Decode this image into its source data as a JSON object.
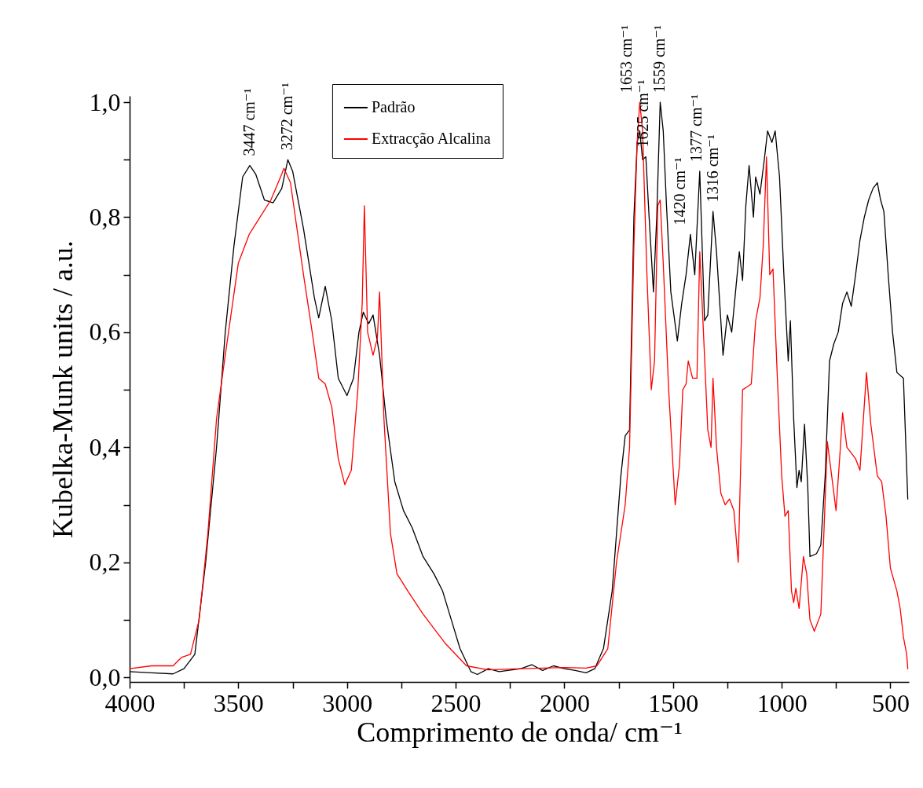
{
  "chart_data": {
    "type": "line",
    "xlabel": "Comprimento de onda/ cm⁻¹",
    "ylabel": "Kubelka-Munk units / a.u.",
    "xlim": [
      4000,
      415
    ],
    "ylim": [
      -0.008,
      1.011
    ],
    "xticks": [
      4000,
      {
        "value": 3750,
        "label": null
      },
      3500,
      {
        "value": 3250,
        "label": null
      },
      3000,
      {
        "value": 2750,
        "label": null
      },
      2500,
      {
        "value": 2250,
        "label": null
      },
      2000,
      {
        "value": 1750,
        "label": null
      },
      1500,
      {
        "value": 1250,
        "label": null
      },
      1000,
      {
        "value": 750,
        "label": null
      },
      500
    ],
    "yticks": [
      {
        "value": 0,
        "label": "0,0"
      },
      {
        "value": 0.1,
        "label": null
      },
      {
        "value": 0.2,
        "label": "0,2"
      },
      {
        "value": 0.3,
        "label": null
      },
      {
        "value": 0.4,
        "label": "0,4"
      },
      {
        "value": 0.5,
        "label": null
      },
      {
        "value": 0.6,
        "label": "0,6"
      },
      {
        "value": 0.7,
        "label": null
      },
      {
        "value": 0.8,
        "label": "0,8"
      },
      {
        "value": 0.9,
        "label": null
      },
      {
        "value": 1.0,
        "label": "1,0"
      }
    ],
    "grid": false,
    "legend": "top",
    "series": [
      {
        "name": "Padrão",
        "color": "#000000",
        "x": [
          4000,
          3900,
          3800,
          3750,
          3700,
          3650,
          3600,
          3560,
          3520,
          3480,
          3447,
          3420,
          3380,
          3340,
          3300,
          3272,
          3250,
          3200,
          3150,
          3130,
          3100,
          3070,
          3040,
          3000,
          2970,
          2945,
          2925,
          2900,
          2880,
          2850,
          2820,
          2780,
          2740,
          2700,
          2650,
          2600,
          2560,
          2520,
          2480,
          2430,
          2400,
          2350,
          2300,
          2200,
          2150,
          2100,
          2050,
          2000,
          1950,
          1900,
          1860,
          1820,
          1780,
          1760,
          1740,
          1720,
          1700,
          1680,
          1665,
          1653,
          1640,
          1625,
          1610,
          1590,
          1575,
          1559,
          1545,
          1530,
          1510,
          1480,
          1460,
          1440,
          1420,
          1400,
          1377,
          1355,
          1340,
          1316,
          1300,
          1270,
          1250,
          1230,
          1210,
          1195,
          1180,
          1165,
          1150,
          1130,
          1120,
          1100,
          1080,
          1065,
          1045,
          1030,
          1010,
          990,
          970,
          960,
          945,
          930,
          920,
          910,
          895,
          880,
          870,
          840,
          820,
          800,
          780,
          760,
          740,
          720,
          700,
          680,
          660,
          640,
          620,
          600,
          580,
          560,
          545,
          530,
          510,
          490,
          470,
          455,
          440,
          420
        ],
        "values": [
          0.01,
          0.008,
          0.006,
          0.015,
          0.04,
          0.2,
          0.4,
          0.6,
          0.75,
          0.87,
          0.89,
          0.875,
          0.83,
          0.825,
          0.85,
          0.9,
          0.88,
          0.78,
          0.66,
          0.625,
          0.68,
          0.62,
          0.52,
          0.49,
          0.52,
          0.6,
          0.635,
          0.615,
          0.63,
          0.56,
          0.45,
          0.34,
          0.29,
          0.26,
          0.21,
          0.18,
          0.15,
          0.1,
          0.05,
          0.01,
          0.005,
          0.015,
          0.01,
          0.015,
          0.022,
          0.012,
          0.02,
          0.015,
          0.012,
          0.008,
          0.015,
          0.05,
          0.15,
          0.25,
          0.35,
          0.42,
          0.43,
          0.8,
          0.93,
          0.95,
          0.9,
          0.905,
          0.8,
          0.67,
          0.8,
          1.0,
          0.95,
          0.82,
          0.67,
          0.585,
          0.65,
          0.7,
          0.77,
          0.7,
          0.88,
          0.62,
          0.63,
          0.81,
          0.74,
          0.56,
          0.63,
          0.6,
          0.68,
          0.74,
          0.69,
          0.82,
          0.89,
          0.8,
          0.87,
          0.84,
          0.9,
          0.95,
          0.93,
          0.95,
          0.87,
          0.7,
          0.55,
          0.62,
          0.45,
          0.33,
          0.36,
          0.34,
          0.44,
          0.33,
          0.21,
          0.215,
          0.23,
          0.35,
          0.55,
          0.58,
          0.6,
          0.65,
          0.67,
          0.645,
          0.7,
          0.76,
          0.8,
          0.83,
          0.85,
          0.86,
          0.83,
          0.81,
          0.7,
          0.6,
          0.53,
          0.525,
          0.52,
          0.31
        ]
      },
      {
        "name": "Extracção Alcalina",
        "color": "#ff0000",
        "x": [
          4000,
          3900,
          3800,
          3760,
          3720,
          3680,
          3640,
          3600,
          3560,
          3500,
          3450,
          3400,
          3350,
          3300,
          3290,
          3260,
          3230,
          3200,
          3160,
          3130,
          3100,
          3070,
          3040,
          3010,
          2980,
          2950,
          2930,
          2920,
          2905,
          2880,
          2860,
          2850,
          2830,
          2800,
          2770,
          2720,
          2650,
          2550,
          2450,
          2350,
          2200,
          2000,
          1900,
          1850,
          1800,
          1760,
          1720,
          1700,
          1680,
          1665,
          1653,
          1640,
          1620,
          1600,
          1585,
          1570,
          1559,
          1545,
          1520,
          1490,
          1470,
          1455,
          1440,
          1430,
          1410,
          1390,
          1377,
          1360,
          1340,
          1325,
          1316,
          1300,
          1280,
          1260,
          1240,
          1220,
          1200,
          1180,
          1160,
          1140,
          1120,
          1100,
          1085,
          1070,
          1055,
          1040,
          1020,
          1000,
          985,
          970,
          955,
          945,
          935,
          920,
          900,
          885,
          870,
          850,
          820,
          790,
          770,
          750,
          730,
          720,
          700,
          680,
          660,
          640,
          610,
          590,
          560,
          540,
          520,
          500,
          470,
          455,
          440,
          425,
          420
        ],
        "values": [
          0.015,
          0.02,
          0.02,
          0.035,
          0.04,
          0.1,
          0.25,
          0.45,
          0.56,
          0.72,
          0.77,
          0.8,
          0.83,
          0.875,
          0.885,
          0.86,
          0.78,
          0.7,
          0.6,
          0.52,
          0.51,
          0.47,
          0.38,
          0.335,
          0.36,
          0.5,
          0.65,
          0.82,
          0.6,
          0.56,
          0.59,
          0.67,
          0.45,
          0.25,
          0.18,
          0.15,
          0.11,
          0.06,
          0.02,
          0.013,
          0.015,
          0.017,
          0.016,
          0.02,
          0.05,
          0.2,
          0.3,
          0.4,
          0.75,
          0.93,
          1.0,
          0.95,
          0.7,
          0.5,
          0.55,
          0.82,
          0.83,
          0.72,
          0.5,
          0.3,
          0.37,
          0.5,
          0.51,
          0.55,
          0.52,
          0.52,
          0.74,
          0.6,
          0.43,
          0.4,
          0.52,
          0.4,
          0.32,
          0.3,
          0.31,
          0.29,
          0.2,
          0.5,
          0.505,
          0.51,
          0.62,
          0.66,
          0.75,
          0.905,
          0.7,
          0.71,
          0.52,
          0.35,
          0.28,
          0.29,
          0.15,
          0.13,
          0.155,
          0.12,
          0.21,
          0.18,
          0.1,
          0.08,
          0.11,
          0.41,
          0.35,
          0.29,
          0.4,
          0.46,
          0.4,
          0.39,
          0.38,
          0.36,
          0.53,
          0.44,
          0.35,
          0.34,
          0.28,
          0.19,
          0.15,
          0.12,
          0.07,
          0.04,
          0.015
        ]
      }
    ],
    "annotations": [
      {
        "text": "3447 cm⁻¹",
        "x": 3447,
        "y": 0.89
      },
      {
        "text": "3272 cm⁻¹",
        "x": 3272,
        "y": 0.9
      },
      {
        "text": "1653 cm⁻¹",
        "x": 1653,
        "y": 1.0
      },
      {
        "text": "1625 cm⁻¹",
        "x": 1625,
        "y": 0.905
      },
      {
        "text": "1559 cm⁻¹",
        "x": 1559,
        "y": 1.0
      },
      {
        "text": "1420 cm⁻¹",
        "x": 1420,
        "y": 0.77
      },
      {
        "text": "1377 cm⁻¹",
        "x": 1377,
        "y": 0.88
      },
      {
        "text": "1316 cm⁻¹",
        "x": 1316,
        "y": 0.81
      }
    ]
  }
}
